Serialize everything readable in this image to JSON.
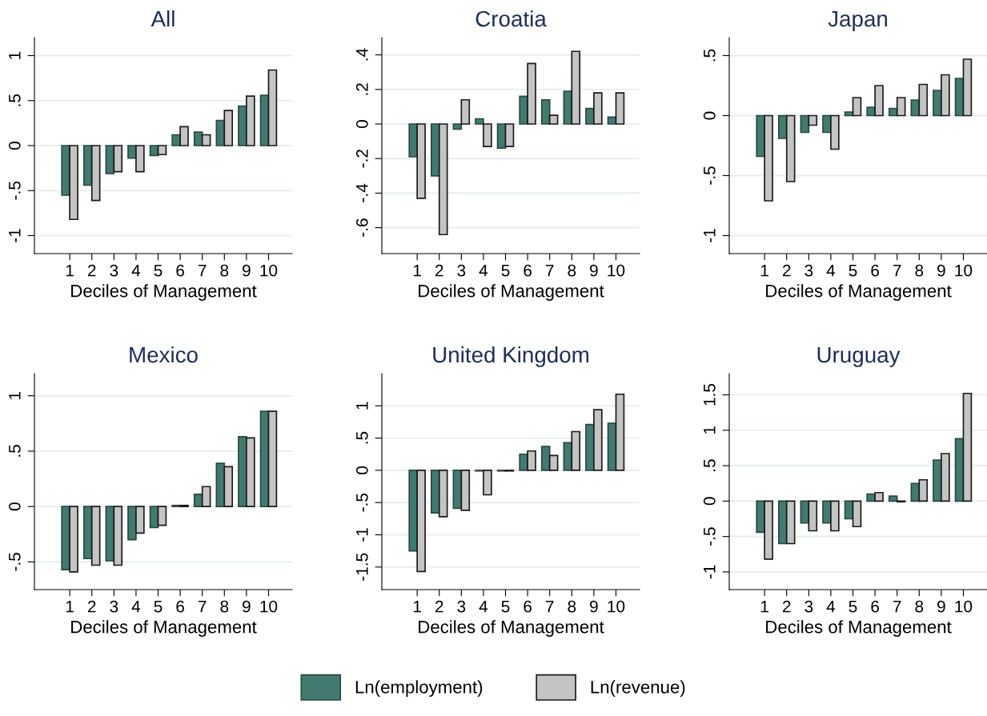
{
  "chart_data": [
    {
      "type": "bar",
      "title": "All",
      "xlabel": "Deciles of Management",
      "categories": [
        "1",
        "2",
        "3",
        "4",
        "5",
        "6",
        "7",
        "8",
        "9",
        "10"
      ],
      "ylim": [
        -1.2,
        1.2
      ],
      "yticks": [
        {
          "value": -1,
          "label": "-1"
        },
        {
          "value": -0.5,
          "label": "-.5"
        },
        0,
        {
          "value": 0.5,
          "label": ".5"
        },
        1
      ],
      "grid": "y",
      "legend": "bottom",
      "series": [
        {
          "name": "Ln(employment)",
          "color": "#427a70",
          "values": [
            -0.55,
            -0.44,
            -0.31,
            -0.14,
            -0.11,
            0.12,
            0.15,
            0.28,
            0.44,
            0.56
          ]
        },
        {
          "name": "Ln(revenue)",
          "color": "#c4c4c4",
          "values": [
            -0.82,
            -0.61,
            -0.29,
            -0.29,
            -0.1,
            0.21,
            0.12,
            0.39,
            0.55,
            0.84
          ]
        }
      ]
    },
    {
      "type": "bar",
      "title": "Croatia",
      "xlabel": "Deciles of Management",
      "categories": [
        "1",
        "2",
        "3",
        "4",
        "5",
        "6",
        "7",
        "8",
        "9",
        "10"
      ],
      "ylim": [
        -0.75,
        0.5
      ],
      "yticks": [
        {
          "value": -0.6,
          "label": "-.6"
        },
        {
          "value": -0.4,
          "label": "-.4"
        },
        {
          "value": -0.2,
          "label": "-.2"
        },
        0,
        {
          "value": 0.2,
          "label": ".2"
        },
        {
          "value": 0.4,
          "label": ".4"
        }
      ],
      "grid": "y",
      "series": [
        {
          "color": "#427a70",
          "values": [
            -0.19,
            -0.3,
            -0.03,
            0.03,
            -0.14,
            0.16,
            0.14,
            0.19,
            0.09,
            0.04
          ]
        },
        {
          "color": "#c4c4c4",
          "values": [
            -0.43,
            -0.64,
            0.14,
            -0.13,
            -0.13,
            0.35,
            0.05,
            0.42,
            0.18,
            0.18
          ]
        }
      ]
    },
    {
      "type": "bar",
      "title": "Japan",
      "xlabel": "Deciles of Management",
      "categories": [
        "1",
        "2",
        "3",
        "4",
        "5",
        "6",
        "7",
        "8",
        "9",
        "10"
      ],
      "ylim": [
        -1.15,
        0.65
      ],
      "yticks": [
        {
          "value": -1,
          "label": "-1"
        },
        {
          "value": -0.5,
          "label": "-.5"
        },
        0,
        {
          "value": 0.5,
          "label": ".5"
        }
      ],
      "grid": "y",
      "series": [
        {
          "color": "#427a70",
          "values": [
            -0.34,
            -0.19,
            -0.14,
            -0.14,
            0.03,
            0.07,
            0.06,
            0.13,
            0.21,
            0.31
          ]
        },
        {
          "color": "#c4c4c4",
          "values": [
            -0.71,
            -0.55,
            -0.08,
            -0.28,
            0.15,
            0.25,
            0.15,
            0.26,
            0.34,
            0.47
          ]
        }
      ]
    },
    {
      "type": "bar",
      "title": "Mexico",
      "xlabel": "Deciles of Management",
      "categories": [
        "1",
        "2",
        "3",
        "4",
        "5",
        "6",
        "7",
        "8",
        "9",
        "10"
      ],
      "ylim": [
        -0.75,
        1.2
      ],
      "yticks": [
        {
          "value": -0.5,
          "label": "-.5"
        },
        0,
        {
          "value": 0.5,
          "label": ".5"
        },
        1
      ],
      "grid": "y",
      "series": [
        {
          "color": "#427a70",
          "values": [
            -0.57,
            -0.47,
            -0.49,
            -0.3,
            -0.19,
            0.01,
            0.11,
            0.39,
            0.63,
            0.86
          ]
        },
        {
          "color": "#c4c4c4",
          "values": [
            -0.59,
            -0.53,
            -0.53,
            -0.24,
            -0.17,
            0.01,
            0.18,
            0.36,
            0.62,
            0.86
          ]
        }
      ]
    },
    {
      "type": "bar",
      "title": "United Kingdom",
      "xlabel": "Deciles of Management",
      "categories": [
        "1",
        "2",
        "3",
        "4",
        "5",
        "6",
        "7",
        "8",
        "9",
        "10"
      ],
      "ylim": [
        -1.85,
        1.5
      ],
      "yticks": [
        {
          "value": -1.5,
          "label": "-1.5"
        },
        {
          "value": -1,
          "label": "-1"
        },
        {
          "value": -0.5,
          "label": "-.5"
        },
        0,
        {
          "value": 0.5,
          "label": ".5"
        },
        1
      ],
      "grid": "y",
      "series": [
        {
          "color": "#427a70",
          "values": [
            -1.25,
            -0.66,
            -0.59,
            -0.01,
            -0.01,
            0.25,
            0.37,
            0.43,
            0.71,
            0.73
          ]
        },
        {
          "color": "#c4c4c4",
          "values": [
            -1.57,
            -0.72,
            -0.62,
            -0.38,
            -0.01,
            0.3,
            0.23,
            0.6,
            0.94,
            1.18
          ]
        }
      ]
    },
    {
      "type": "bar",
      "title": "Uruguay",
      "xlabel": "Deciles of Management",
      "categories": [
        "1",
        "2",
        "3",
        "4",
        "5",
        "6",
        "7",
        "8",
        "9",
        "10"
      ],
      "ylim": [
        -1.25,
        1.8
      ],
      "yticks": [
        {
          "value": -1,
          "label": "-1"
        },
        {
          "value": -0.5,
          "label": "-.5"
        },
        0,
        {
          "value": 0.5,
          "label": ".5"
        },
        1,
        {
          "value": 1.5,
          "label": "1.5"
        }
      ],
      "grid": "y",
      "series": [
        {
          "color": "#427a70",
          "values": [
            -0.44,
            -0.6,
            -0.31,
            -0.31,
            -0.25,
            0.1,
            0.07,
            0.25,
            0.58,
            0.88
          ]
        },
        {
          "color": "#c4c4c4",
          "values": [
            -0.82,
            -0.6,
            -0.42,
            -0.42,
            -0.36,
            0.12,
            -0.01,
            0.3,
            0.67,
            1.52
          ]
        }
      ]
    }
  ]
}
